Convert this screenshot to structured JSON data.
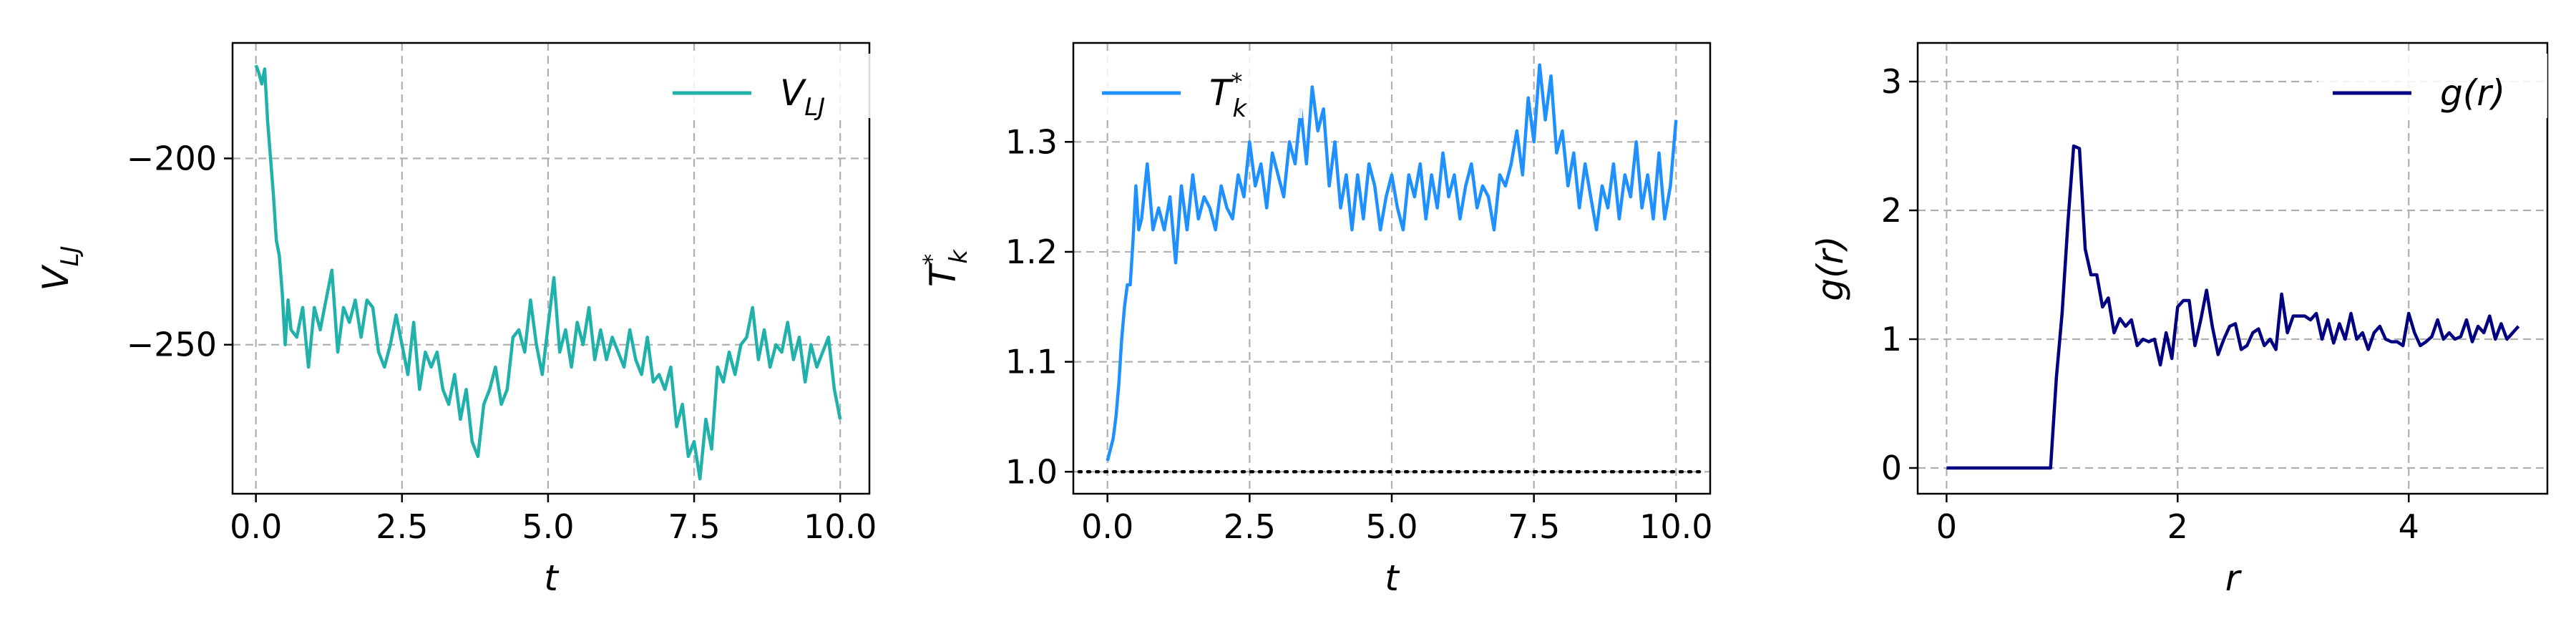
{
  "chart_data": [
    {
      "type": "line",
      "xlabel": "t",
      "ylabel": "V_LJ",
      "ylabel_main": "V",
      "ylabel_sub": "LJ",
      "xlim": [
        -0.4,
        10.5
      ],
      "ylim": [
        -290,
        -169
      ],
      "xticks": [
        0.0,
        2.5,
        5.0,
        7.5,
        10.0
      ],
      "xtick_labels": [
        "0.0",
        "2.5",
        "5.0",
        "7.5",
        "10.0"
      ],
      "yticks": [
        -200,
        -250
      ],
      "ytick_labels": [
        "−200",
        "−250"
      ],
      "grid": true,
      "legend_position": "top-right",
      "series": [
        {
          "name": "V_LJ",
          "name_main": "V",
          "name_sub": "LJ",
          "color": "#20b2aa",
          "x": [
            0.0,
            0.05,
            0.1,
            0.15,
            0.2,
            0.25,
            0.3,
            0.35,
            0.4,
            0.45,
            0.5,
            0.55,
            0.6,
            0.7,
            0.8,
            0.9,
            1.0,
            1.1,
            1.2,
            1.3,
            1.4,
            1.5,
            1.6,
            1.7,
            1.8,
            1.9,
            2.0,
            2.1,
            2.2,
            2.3,
            2.4,
            2.5,
            2.6,
            2.7,
            2.8,
            2.9,
            3.0,
            3.1,
            3.2,
            3.3,
            3.4,
            3.5,
            3.6,
            3.7,
            3.8,
            3.9,
            4.0,
            4.1,
            4.2,
            4.3,
            4.4,
            4.5,
            4.6,
            4.7,
            4.8,
            4.9,
            5.0,
            5.1,
            5.2,
            5.3,
            5.4,
            5.5,
            5.6,
            5.7,
            5.8,
            5.9,
            6.0,
            6.1,
            6.2,
            6.3,
            6.4,
            6.5,
            6.6,
            6.7,
            6.8,
            6.9,
            7.0,
            7.1,
            7.2,
            7.3,
            7.4,
            7.5,
            7.6,
            7.7,
            7.8,
            7.9,
            8.0,
            8.1,
            8.2,
            8.3,
            8.4,
            8.5,
            8.6,
            8.7,
            8.8,
            8.9,
            9.0,
            9.1,
            9.2,
            9.3,
            9.4,
            9.5,
            9.6,
            9.7,
            9.8,
            9.9,
            10.0
          ],
          "y": [
            -175,
            -177,
            -180,
            -176,
            -190,
            -200,
            -210,
            -222,
            -226,
            -236,
            -250,
            -238,
            -246,
            -248,
            -240,
            -256,
            -240,
            -246,
            -238,
            -230,
            -252,
            -240,
            -244,
            -238,
            -248,
            -238,
            -240,
            -252,
            -256,
            -250,
            -242,
            -250,
            -258,
            -244,
            -262,
            -252,
            -256,
            -252,
            -262,
            -266,
            -258,
            -270,
            -262,
            -276,
            -280,
            -266,
            -262,
            -256,
            -266,
            -262,
            -248,
            -246,
            -252,
            -238,
            -250,
            -258,
            -245,
            -232,
            -252,
            -246,
            -256,
            -244,
            -250,
            -240,
            -254,
            -246,
            -254,
            -248,
            -252,
            -256,
            -246,
            -254,
            -258,
            -248,
            -260,
            -258,
            -262,
            -256,
            -272,
            -266,
            -280,
            -276,
            -286,
            -270,
            -278,
            -256,
            -260,
            -252,
            -258,
            -250,
            -248,
            -240,
            -254,
            -246,
            -256,
            -250,
            -252,
            -244,
            -254,
            -248,
            -260,
            -250,
            -256,
            -252,
            -248,
            -262,
            -270
          ]
        }
      ]
    },
    {
      "type": "line",
      "xlabel": "t",
      "ylabel": "T*_k",
      "ylabel_main": "T",
      "ylabel_sub": "k",
      "ylabel_sup": "*",
      "xlim": [
        -0.6,
        10.6
      ],
      "ylim": [
        0.98,
        1.39
      ],
      "xticks": [
        0.0,
        2.5,
        5.0,
        7.5,
        10.0
      ],
      "xtick_labels": [
        "0.0",
        "2.5",
        "5.0",
        "7.5",
        "10.0"
      ],
      "yticks": [
        1.0,
        1.1,
        1.2,
        1.3
      ],
      "ytick_labels": [
        "1.0",
        "1.1",
        "1.2",
        "1.3"
      ],
      "grid": true,
      "legend_position": "top-left",
      "reference_line": {
        "y": 1.0,
        "x": [
          -0.6,
          10.6
        ],
        "style": "dotted",
        "color": "#000000"
      },
      "series": [
        {
          "name": "T*_k",
          "name_main": "T",
          "name_sub": "k",
          "name_sup": "*",
          "color": "#1e90ff",
          "x": [
            0.0,
            0.05,
            0.1,
            0.15,
            0.2,
            0.25,
            0.3,
            0.35,
            0.4,
            0.45,
            0.5,
            0.55,
            0.6,
            0.7,
            0.8,
            0.9,
            1.0,
            1.1,
            1.2,
            1.3,
            1.4,
            1.5,
            1.6,
            1.7,
            1.8,
            1.9,
            2.0,
            2.1,
            2.2,
            2.3,
            2.4,
            2.5,
            2.6,
            2.7,
            2.8,
            2.9,
            3.0,
            3.1,
            3.2,
            3.3,
            3.4,
            3.5,
            3.6,
            3.7,
            3.8,
            3.9,
            4.0,
            4.1,
            4.2,
            4.3,
            4.4,
            4.5,
            4.6,
            4.7,
            4.8,
            4.9,
            5.0,
            5.1,
            5.2,
            5.3,
            5.4,
            5.5,
            5.6,
            5.7,
            5.8,
            5.9,
            6.0,
            6.1,
            6.2,
            6.3,
            6.4,
            6.5,
            6.6,
            6.7,
            6.8,
            6.9,
            7.0,
            7.1,
            7.2,
            7.3,
            7.4,
            7.5,
            7.6,
            7.7,
            7.8,
            7.9,
            8.0,
            8.1,
            8.2,
            8.3,
            8.4,
            8.5,
            8.6,
            8.7,
            8.8,
            8.9,
            9.0,
            9.1,
            9.2,
            9.3,
            9.4,
            9.5,
            9.6,
            9.7,
            9.8,
            9.9,
            10.0
          ],
          "y": [
            1.01,
            1.02,
            1.03,
            1.05,
            1.08,
            1.12,
            1.15,
            1.17,
            1.17,
            1.21,
            1.26,
            1.22,
            1.23,
            1.28,
            1.22,
            1.24,
            1.22,
            1.25,
            1.19,
            1.26,
            1.22,
            1.27,
            1.23,
            1.25,
            1.24,
            1.22,
            1.26,
            1.24,
            1.23,
            1.27,
            1.25,
            1.3,
            1.26,
            1.28,
            1.24,
            1.29,
            1.27,
            1.25,
            1.3,
            1.28,
            1.33,
            1.28,
            1.35,
            1.31,
            1.33,
            1.26,
            1.3,
            1.24,
            1.27,
            1.22,
            1.27,
            1.23,
            1.28,
            1.26,
            1.22,
            1.25,
            1.27,
            1.24,
            1.22,
            1.27,
            1.25,
            1.28,
            1.23,
            1.27,
            1.24,
            1.29,
            1.25,
            1.27,
            1.23,
            1.26,
            1.28,
            1.24,
            1.26,
            1.25,
            1.22,
            1.27,
            1.26,
            1.28,
            1.31,
            1.27,
            1.34,
            1.3,
            1.37,
            1.32,
            1.36,
            1.29,
            1.31,
            1.26,
            1.29,
            1.24,
            1.28,
            1.25,
            1.22,
            1.26,
            1.24,
            1.28,
            1.23,
            1.27,
            1.25,
            1.3,
            1.24,
            1.27,
            1.23,
            1.29,
            1.23,
            1.26,
            1.32
          ]
        }
      ]
    },
    {
      "type": "line",
      "xlabel": "r",
      "ylabel": "g(r)",
      "xlim": [
        -0.25,
        5.2
      ],
      "ylim": [
        -0.2,
        3.3
      ],
      "xticks": [
        0,
        2,
        4
      ],
      "xtick_labels": [
        "0",
        "2",
        "4"
      ],
      "yticks": [
        0,
        1,
        2,
        3
      ],
      "ytick_labels": [
        "0",
        "1",
        "2",
        "3"
      ],
      "grid": true,
      "legend_position": "top-right",
      "series": [
        {
          "name": "g(r)",
          "color": "#000080",
          "x": [
            0.0,
            0.9,
            0.95,
            1.0,
            1.05,
            1.1,
            1.15,
            1.2,
            1.25,
            1.3,
            1.35,
            1.4,
            1.45,
            1.5,
            1.55,
            1.6,
            1.65,
            1.7,
            1.75,
            1.8,
            1.85,
            1.9,
            1.95,
            2.0,
            2.05,
            2.1,
            2.15,
            2.2,
            2.25,
            2.3,
            2.35,
            2.4,
            2.45,
            2.5,
            2.55,
            2.6,
            2.65,
            2.7,
            2.75,
            2.8,
            2.85,
            2.9,
            2.95,
            3.0,
            3.05,
            3.1,
            3.15,
            3.2,
            3.25,
            3.3,
            3.35,
            3.4,
            3.45,
            3.5,
            3.55,
            3.6,
            3.65,
            3.7,
            3.75,
            3.8,
            3.85,
            3.9,
            3.95,
            4.0,
            4.05,
            4.1,
            4.15,
            4.2,
            4.25,
            4.3,
            4.35,
            4.4,
            4.45,
            4.5,
            4.55,
            4.6,
            4.65,
            4.7,
            4.75,
            4.8,
            4.85,
            4.9,
            4.95
          ],
          "y": [
            0.0,
            0.0,
            0.7,
            1.2,
            1.9,
            2.5,
            2.48,
            1.7,
            1.5,
            1.5,
            1.25,
            1.32,
            1.05,
            1.16,
            1.1,
            1.15,
            0.95,
            1.0,
            0.98,
            1.0,
            0.8,
            1.05,
            0.85,
            1.25,
            1.3,
            1.3,
            0.95,
            1.15,
            1.38,
            1.1,
            0.88,
            1.0,
            1.1,
            1.12,
            0.92,
            0.95,
            1.05,
            1.08,
            0.95,
            1.0,
            0.92,
            1.35,
            1.05,
            1.18,
            1.18,
            1.18,
            1.15,
            1.2,
            1.0,
            1.15,
            0.97,
            1.12,
            1.0,
            1.2,
            1.0,
            1.05,
            0.92,
            1.05,
            1.1,
            1.0,
            0.98,
            0.98,
            0.95,
            1.2,
            1.05,
            0.95,
            0.98,
            1.02,
            1.15,
            1.0,
            1.05,
            1.0,
            1.02,
            1.15,
            0.98,
            1.1,
            1.05,
            1.18,
            1.0,
            1.12,
            1.0,
            1.05,
            1.1
          ]
        }
      ]
    }
  ]
}
